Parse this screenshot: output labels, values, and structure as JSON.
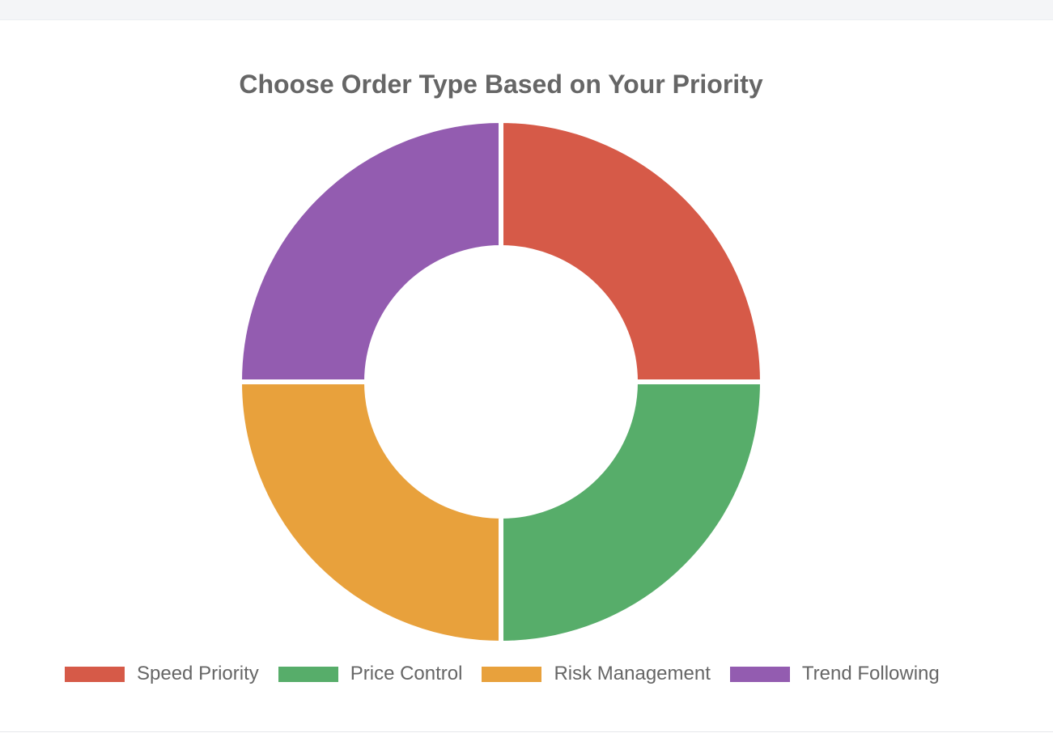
{
  "chart_data": {
    "type": "pie",
    "variant": "doughnut",
    "title": "Choose Order Type Based on Your Priority",
    "categories": [
      "Speed Priority",
      "Price Control",
      "Risk Management",
      "Trend Following"
    ],
    "values": [
      25,
      25,
      25,
      25
    ],
    "colors": [
      "#d65a48",
      "#57ad6a",
      "#e8a13c",
      "#935cb0"
    ],
    "legend_position": "bottom"
  },
  "legend": {
    "items": [
      {
        "label": "Speed Priority",
        "color": "#d65a48"
      },
      {
        "label": "Price Control",
        "color": "#57ad6a"
      },
      {
        "label": "Risk Management",
        "color": "#e8a13c"
      },
      {
        "label": "Trend Following",
        "color": "#935cb0"
      }
    ]
  }
}
